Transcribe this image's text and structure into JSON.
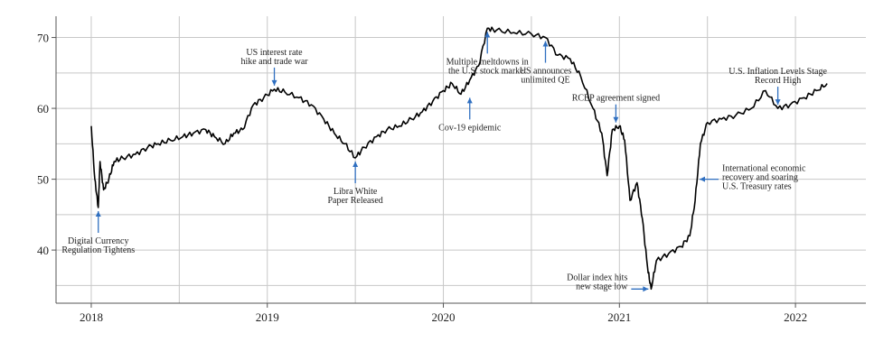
{
  "chart_data": {
    "type": "line",
    "title": "",
    "xlabel": "",
    "ylabel": "",
    "xlim": [
      2017.8,
      2022.4
    ],
    "ylim": [
      32.5,
      73
    ],
    "x_ticks": [
      2018,
      2019,
      2020,
      2021,
      2022
    ],
    "x_tick_labels": [
      "2018",
      "2019",
      "2020",
      "2021",
      "2022"
    ],
    "y_ticks": [
      40,
      50,
      60,
      70
    ],
    "y_tick_labels": [
      "40",
      "50",
      "60",
      "70"
    ],
    "grid": true,
    "series": [
      {
        "name": "",
        "points": [
          [
            2018.0,
            57.5
          ],
          [
            2018.02,
            50.0
          ],
          [
            2018.04,
            46.0
          ],
          [
            2018.05,
            52.5
          ],
          [
            2018.07,
            48.5
          ],
          [
            2018.1,
            50.0
          ],
          [
            2018.13,
            52.5
          ],
          [
            2018.18,
            53.0
          ],
          [
            2018.25,
            53.5
          ],
          [
            2018.32,
            54.5
          ],
          [
            2018.38,
            55.0
          ],
          [
            2018.45,
            55.5
          ],
          [
            2018.52,
            56.0
          ],
          [
            2018.58,
            56.5
          ],
          [
            2018.65,
            57.0
          ],
          [
            2018.7,
            56.0
          ],
          [
            2018.76,
            55.0
          ],
          [
            2018.81,
            56.5
          ],
          [
            2018.86,
            57.0
          ],
          [
            2018.92,
            60.5
          ],
          [
            2018.98,
            61.5
          ],
          [
            2019.04,
            62.7
          ],
          [
            2019.1,
            62.3
          ],
          [
            2019.18,
            61.5
          ],
          [
            2019.25,
            60.5
          ],
          [
            2019.32,
            58.5
          ],
          [
            2019.38,
            56.5
          ],
          [
            2019.44,
            55.0
          ],
          [
            2019.5,
            53.0
          ],
          [
            2019.55,
            54.5
          ],
          [
            2019.62,
            56.0
          ],
          [
            2019.68,
            57.0
          ],
          [
            2019.75,
            57.5
          ],
          [
            2019.82,
            58.5
          ],
          [
            2019.88,
            59.5
          ],
          [
            2019.94,
            61.0
          ],
          [
            2020.0,
            62.5
          ],
          [
            2020.05,
            63.5
          ],
          [
            2020.1,
            62.0
          ],
          [
            2020.15,
            64.0
          ],
          [
            2020.2,
            66.0
          ],
          [
            2020.25,
            71.3
          ],
          [
            2020.3,
            71.0
          ],
          [
            2020.4,
            70.7
          ],
          [
            2020.5,
            70.5
          ],
          [
            2020.58,
            70.0
          ],
          [
            2020.65,
            67.5
          ],
          [
            2020.72,
            67.0
          ],
          [
            2020.78,
            64.5
          ],
          [
            2020.85,
            60.0
          ],
          [
            2020.9,
            56.5
          ],
          [
            2020.93,
            50.5
          ],
          [
            2020.96,
            57.0
          ],
          [
            2021.0,
            57.5
          ],
          [
            2021.03,
            55.5
          ],
          [
            2021.06,
            47.0
          ],
          [
            2021.1,
            49.5
          ],
          [
            2021.13,
            44.5
          ],
          [
            2021.16,
            37.5
          ],
          [
            2021.18,
            34.5
          ],
          [
            2021.21,
            38.5
          ],
          [
            2021.28,
            39.5
          ],
          [
            2021.35,
            40.5
          ],
          [
            2021.4,
            42.0
          ],
          [
            2021.43,
            47.0
          ],
          [
            2021.46,
            55.0
          ],
          [
            2021.5,
            58.0
          ],
          [
            2021.58,
            58.5
          ],
          [
            2021.66,
            59.0
          ],
          [
            2021.75,
            60.0
          ],
          [
            2021.83,
            62.5
          ],
          [
            2021.9,
            60.0
          ],
          [
            2021.97,
            60.5
          ],
          [
            2022.05,
            61.5
          ],
          [
            2022.12,
            62.5
          ],
          [
            2022.18,
            63.5
          ]
        ]
      }
    ],
    "annotations": [
      {
        "lines": [
          "Digital Currency",
          "Regulation Tightens"
        ],
        "x": 2018.04,
        "y": 46.0,
        "text_dir": "below"
      },
      {
        "lines": [
          "US interest rate",
          "hike and trade war"
        ],
        "x": 2019.04,
        "y": 62.7,
        "text_dir": "above"
      },
      {
        "lines": [
          "Libra White",
          "Paper Released"
        ],
        "x": 2019.5,
        "y": 53.0,
        "text_dir": "below"
      },
      {
        "lines": [
          "Cov-19 epidemic"
        ],
        "x": 2020.15,
        "y": 62.0,
        "text_dir": "below"
      },
      {
        "lines": [
          "Multiple meltdowns in",
          "the U.S. stock market"
        ],
        "x": 2020.25,
        "y": 71.3,
        "text_dir": "below"
      },
      {
        "lines": [
          "US announces",
          "unlimited QE"
        ],
        "x": 2020.58,
        "y": 70.0,
        "text_dir": "below"
      },
      {
        "lines": [
          "RCEP agreement signed"
        ],
        "x": 2020.98,
        "y": 57.5,
        "text_dir": "above"
      },
      {
        "lines": [
          "Dollar index hits",
          "new stage low"
        ],
        "x": 2021.18,
        "y": 34.5,
        "text_dir": "left"
      },
      {
        "lines": [
          "International economic",
          "recovery and soaring",
          "U.S. Treasury rates"
        ],
        "x": 2021.44,
        "y": 50.0,
        "text_dir": "right"
      },
      {
        "lines": [
          "U.S. Inflation Levels Stage",
          "Record High"
        ],
        "x": 2021.9,
        "y": 60.0,
        "text_dir": "above"
      }
    ]
  }
}
